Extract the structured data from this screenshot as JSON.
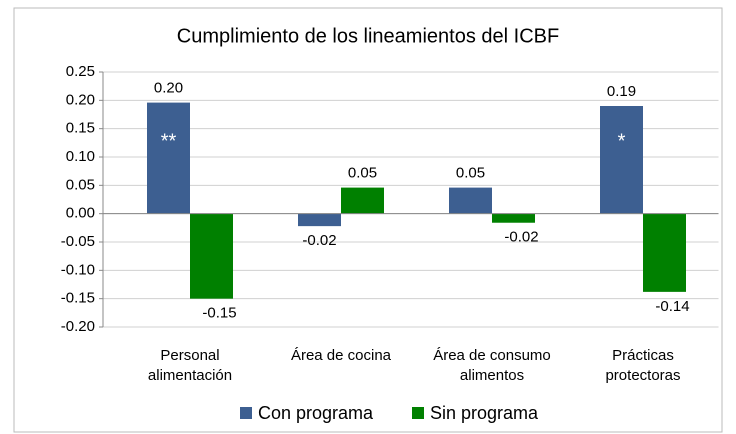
{
  "chart_data": {
    "type": "bar",
    "title": "Cumplimiento de los lineamientos del ICBF",
    "categories": [
      "Personal alimentación",
      "Área de cocina",
      "Área de consumo alimentos",
      "Prácticas protectoras"
    ],
    "series": [
      {
        "name": "Con programa",
        "color": "#3d5f91",
        "values": [
          0.196,
          -0.022,
          0.046,
          0.19
        ],
        "value_labels": [
          "0.20",
          "-0.02",
          "0.05",
          "0.19"
        ]
      },
      {
        "name": "Sin programa",
        "color": "#008000",
        "values": [
          -0.15,
          0.046,
          -0.016,
          -0.138
        ],
        "value_labels": [
          "-0.15",
          "0.05",
          "-0.02",
          "-0.14"
        ]
      }
    ],
    "annotations": [
      "**",
      "*"
    ],
    "ylim": [
      -0.2,
      0.25
    ],
    "yticks": [
      {
        "value": -0.2,
        "label": "-0.20"
      },
      {
        "value": -0.15,
        "label": "-0.15"
      },
      {
        "value": -0.1,
        "label": "-0.10"
      },
      {
        "value": -0.05,
        "label": "-0.05"
      },
      {
        "value": 0,
        "label": "0.00"
      },
      {
        "value": 0.05,
        "label": "0.05"
      },
      {
        "value": 0.1,
        "label": "0.10"
      },
      {
        "value": 0.15,
        "label": "0.15"
      },
      {
        "value": 0.2,
        "label": "0.20"
      },
      {
        "value": 0.25,
        "label": "0.25"
      }
    ],
    "grid": true,
    "legend": "bottom"
  }
}
